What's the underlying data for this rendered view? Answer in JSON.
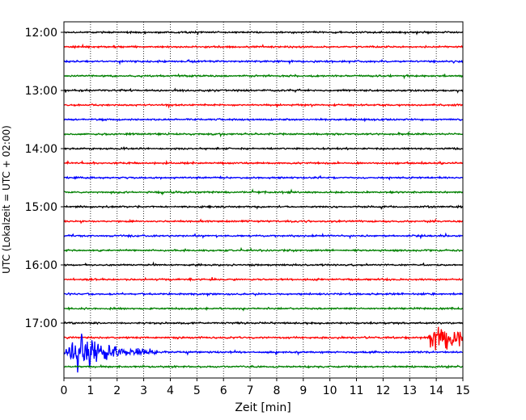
{
  "chart_data": {
    "type": "line",
    "title": "",
    "xlabel": "Zeit  [min]",
    "ylabel": "UTC (Lokalzeit = UTC + 02:00)",
    "xlim": [
      0,
      15
    ],
    "x_ticks": [
      "0",
      "1",
      "2",
      "3",
      "4",
      "5",
      "6",
      "7",
      "8",
      "9",
      "10",
      "11",
      "12",
      "13",
      "14",
      "15"
    ],
    "y_ticks": [
      "12:00",
      "13:00",
      "14:00",
      "15:00",
      "16:00",
      "17:00"
    ],
    "vertical_grid": true,
    "trace_colors": [
      "#000000",
      "#ff0000",
      "#0000ff",
      "#008000"
    ],
    "traces": [
      {
        "start": "12:00",
        "color": "#000000"
      },
      {
        "start": "12:15",
        "color": "#ff0000"
      },
      {
        "start": "12:30",
        "color": "#0000ff"
      },
      {
        "start": "12:45",
        "color": "#008000"
      },
      {
        "start": "13:00",
        "color": "#000000"
      },
      {
        "start": "13:15",
        "color": "#ff0000"
      },
      {
        "start": "13:30",
        "color": "#0000ff"
      },
      {
        "start": "13:45",
        "color": "#008000"
      },
      {
        "start": "14:00",
        "color": "#000000"
      },
      {
        "start": "14:15",
        "color": "#ff0000"
      },
      {
        "start": "14:30",
        "color": "#0000ff"
      },
      {
        "start": "14:45",
        "color": "#008000"
      },
      {
        "start": "15:00",
        "color": "#000000"
      },
      {
        "start": "15:15",
        "color": "#ff0000"
      },
      {
        "start": "15:30",
        "color": "#0000ff"
      },
      {
        "start": "15:45",
        "color": "#008000"
      },
      {
        "start": "16:00",
        "color": "#000000"
      },
      {
        "start": "16:15",
        "color": "#ff0000"
      },
      {
        "start": "16:30",
        "color": "#0000ff"
      },
      {
        "start": "16:45",
        "color": "#008000"
      },
      {
        "start": "17:00",
        "color": "#000000"
      },
      {
        "start": "17:15",
        "color": "#ff0000"
      },
      {
        "start": "17:30",
        "color": "#0000ff"
      },
      {
        "start": "17:45",
        "color": "#008000"
      }
    ],
    "events": [
      {
        "trace_start": "17:15",
        "t_start": 13.7,
        "t_end": 15.0
      },
      {
        "trace_start": "17:30",
        "t_start": 0.0,
        "t_end": 3.5
      }
    ]
  }
}
